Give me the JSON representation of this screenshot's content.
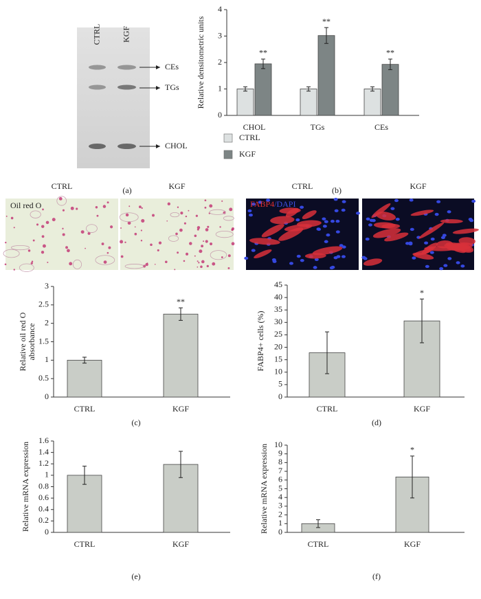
{
  "panel_labels": [
    "(a)",
    "(b)",
    "(c)",
    "(d)",
    "(e)",
    "(f)"
  ],
  "gel": {
    "lanes": [
      "CTRL",
      "KGF"
    ],
    "bands": [
      "CEs",
      "TGs",
      "CHOL"
    ]
  },
  "micrographs": [
    {
      "label": "CTRL",
      "stain": "Oil red O"
    },
    {
      "label": "KGF"
    },
    {
      "label": "CTRL",
      "stain": [
        "FABP4",
        "/DAPI"
      ]
    },
    {
      "label": "KGF"
    }
  ],
  "chart_data": [
    {
      "type": "bar",
      "ylabel": "Relative densitometric units",
      "categories": [
        "CHOL",
        "TGs",
        "CEs"
      ],
      "series": [
        {
          "name": "CTRL",
          "color": "#dde1e1",
          "values": [
            1,
            1,
            1
          ],
          "errors": [
            0.08,
            0.08,
            0.08
          ]
        },
        {
          "name": "KGF",
          "color": "#7d8585",
          "values": [
            1.95,
            3.02,
            1.93
          ],
          "errors": [
            0.18,
            0.3,
            0.2
          ],
          "annotations": [
            "**",
            "**",
            "**"
          ]
        }
      ],
      "ylim": [
        0,
        4
      ],
      "yticks": [
        0,
        1,
        2,
        3,
        4
      ],
      "legend": "bottom-left"
    },
    {
      "type": "bar",
      "ylabel": [
        "Relative oil red O",
        "absorbance"
      ],
      "categories": [
        "CTRL",
        "KGF"
      ],
      "series": [
        {
          "color": "#c9cdc7",
          "values": [
            1,
            2.25
          ],
          "errors": [
            0.08,
            0.17
          ],
          "annotations": [
            null,
            "**"
          ]
        }
      ],
      "ylim": [
        0,
        3
      ],
      "yticks": [
        0,
        0.5,
        1,
        1.5,
        2,
        2.5,
        3
      ]
    },
    {
      "type": "bar",
      "ylabel": "FABP4+ cells (%)",
      "categories": [
        "CTRL",
        "KGF"
      ],
      "series": [
        {
          "color": "#c9cdc7",
          "values": [
            17.8,
            30.6
          ],
          "errors": [
            8.4,
            8.8
          ],
          "annotations": [
            null,
            "*"
          ]
        }
      ],
      "ylim": [
        0,
        45
      ],
      "yticks": [
        0,
        5,
        10,
        15,
        20,
        25,
        30,
        35,
        40,
        45
      ]
    },
    {
      "type": "bar",
      "ylabel": "Relative mRNA expression",
      "categories": [
        "CTRL",
        "KGF"
      ],
      "series": [
        {
          "color": "#c9cdc7",
          "values": [
            1,
            1.19
          ],
          "errors": [
            0.16,
            0.23
          ]
        }
      ],
      "ylim": [
        0,
        1.6
      ],
      "yticks": [
        0,
        0.2,
        0.4,
        0.6,
        0.8,
        1,
        1.2,
        1.4,
        1.6
      ]
    },
    {
      "type": "bar",
      "ylabel": "Relative mRNA expression",
      "categories": [
        "CTRL",
        "KGF"
      ],
      "series": [
        {
          "color": "#c9cdc7",
          "values": [
            1,
            6.35
          ],
          "errors": [
            0.45,
            2.4
          ],
          "annotations": [
            null,
            "*"
          ]
        }
      ],
      "ylim": [
        0,
        10
      ],
      "yticks": [
        0,
        1,
        2,
        3,
        4,
        5,
        6,
        7,
        8,
        9,
        10
      ]
    }
  ]
}
